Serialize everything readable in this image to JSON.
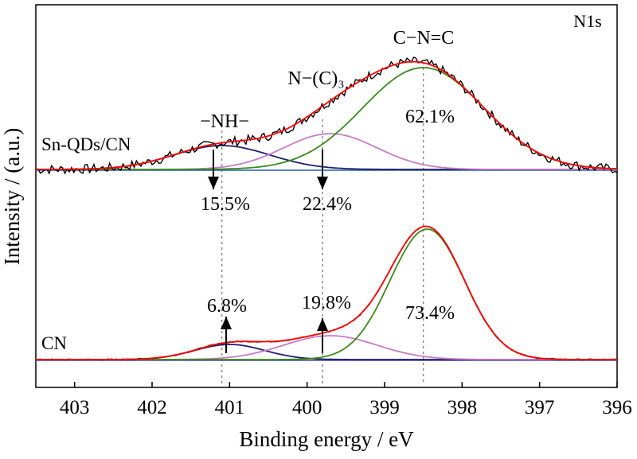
{
  "chart_data": {
    "type": "line",
    "spectrum_tag": "N1s",
    "xlabel": "Binding energy / eV",
    "ylabel": "Intensity / (a.u.)",
    "xlim": [
      403.5,
      396
    ],
    "x_reversed": true,
    "x_ticks": [
      403,
      402,
      401,
      400,
      399,
      398,
      397,
      396
    ],
    "grid": false,
    "peak_labels": [
      "−NH−",
      "N−(C)₃",
      "C−N=C"
    ],
    "reference_lines_eV": [
      401.1,
      399.8,
      398.5
    ],
    "samples": [
      {
        "name": "Sn-QDs/CN",
        "components": [
          {
            "assignment": "−NH−",
            "center_eV": 401.1,
            "percent": "15.5%",
            "height": 30,
            "sigma": 0.62,
            "color": "#1f1f6b"
          },
          {
            "assignment": "N−(C)₃",
            "center_eV": 399.7,
            "percent": "22.4%",
            "height": 45,
            "sigma": 0.6,
            "color": "#c77bc7"
          },
          {
            "assignment": "C−N=C",
            "center_eV": 398.5,
            "percent": "62.1%",
            "height": 128,
            "sigma": 0.78,
            "color": "#3a8a1a"
          }
        ],
        "colors": {
          "raw": "#000000",
          "fit": "#ff0000",
          "baseline": "#2060b0"
        }
      },
      {
        "name": "CN",
        "components": [
          {
            "assignment": "−NH−",
            "center_eV": 401.0,
            "percent": "6.8%",
            "height": 19,
            "sigma": 0.45,
            "color": "#1f1f6b"
          },
          {
            "assignment": "N−(C)₃",
            "center_eV": 399.7,
            "percent": "19.8%",
            "height": 30,
            "sigma": 0.6,
            "color": "#c77bc7"
          },
          {
            "assignment": "C−N=C",
            "center_eV": 398.45,
            "percent": "73.4%",
            "height": 164,
            "sigma": 0.48,
            "color": "#3a8a1a"
          }
        ],
        "colors": {
          "raw": "#000000",
          "fit": "#ff0000",
          "baseline": "#4a4aa0"
        }
      }
    ]
  }
}
